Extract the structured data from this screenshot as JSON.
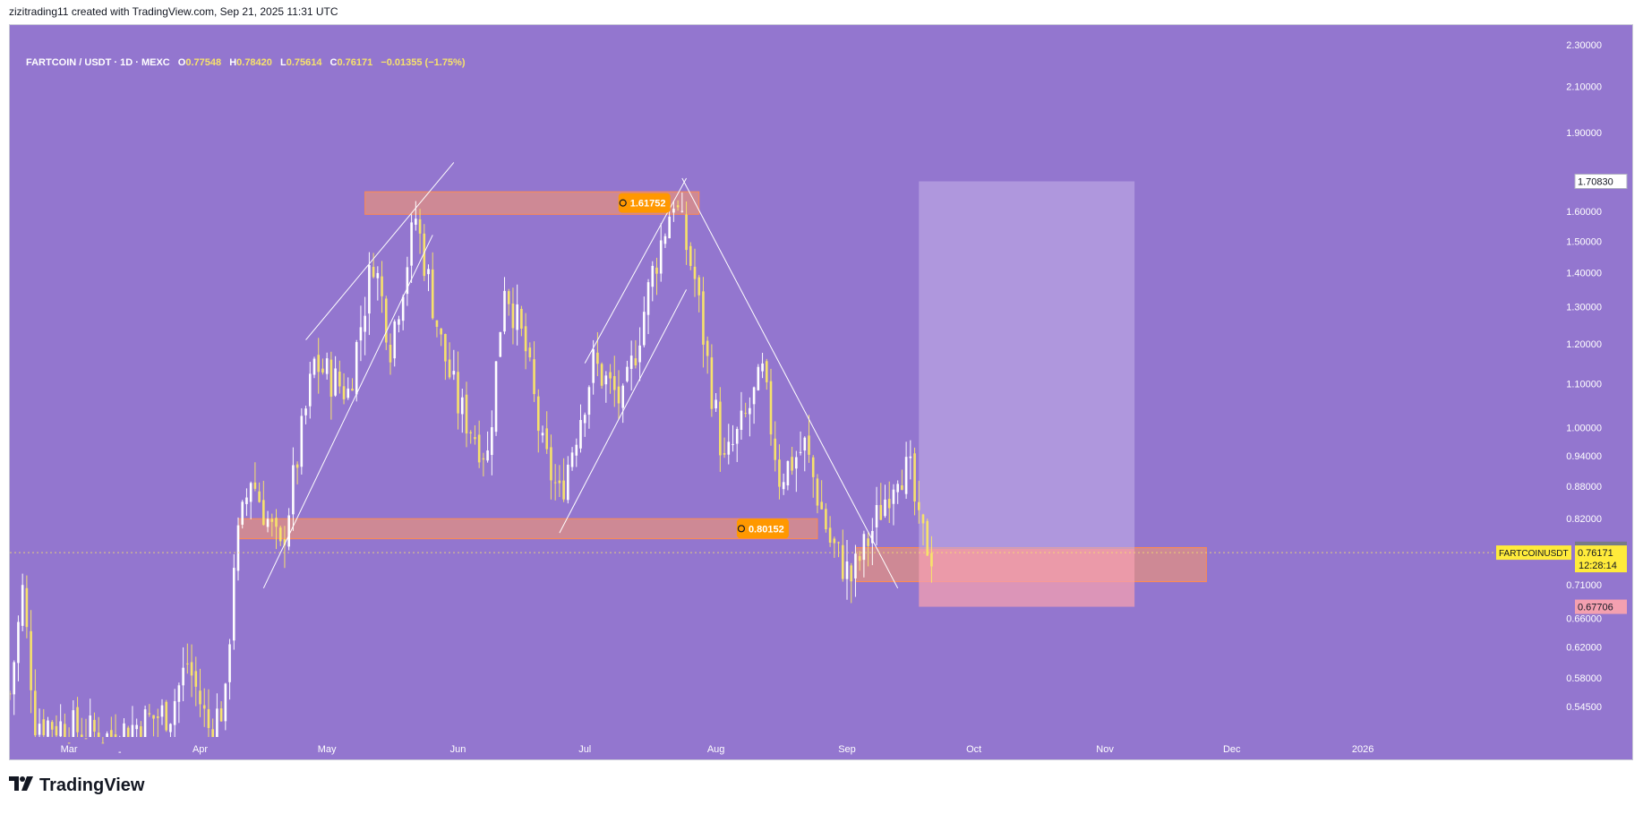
{
  "header": {
    "attribution": "zizitrading11 created with TradingView.com, Sep 21, 2025 11:31 UTC"
  },
  "legend": {
    "symbol": "FARTCOIN / USDT · 1D · MEXC",
    "o_label": "O",
    "o": "0.77548",
    "h_label": "H",
    "h": "0.78420",
    "l_label": "L",
    "l": "0.75614",
    "c_label": "C",
    "c": "0.76171",
    "change": "−0.01355 (−1.75%)"
  },
  "brand": {
    "name": "TradingView",
    "logo_icon": "tradingview-logo-icon"
  },
  "colors": {
    "background": "#9376cf",
    "candle_up": "#ffffff",
    "candle_down": "#f7e26b",
    "zone_fill": "#ff9966",
    "target_fill": "#c2aee6",
    "stop_fill": "#f4a0b0",
    "label_orange": "#ff9800",
    "price_tag": "#ffeb3b"
  },
  "chart_data": {
    "type": "candlestick",
    "title": "FARTCOIN / USDT · 1D · MEXC",
    "y_scale": "log",
    "ylim": [
      0.51,
      2.4
    ],
    "y_ticks": [
      "2.30000",
      "2.10000",
      "1.90000",
      "1.60000",
      "1.50000",
      "1.40000",
      "1.30000",
      "1.20000",
      "1.10000",
      "1.00000",
      "0.94000",
      "0.88000",
      "0.82000",
      "0.71000",
      "0.66000",
      "0.62000",
      "0.58000",
      "0.54500"
    ],
    "x_ticks": [
      "Mar",
      "Apr",
      "May",
      "Jun",
      "Jul",
      "Aug",
      "Sep",
      "Oct",
      "Nov",
      "Dec",
      "2026"
    ],
    "xlim": [
      "2025-02-15",
      "2026-02-10"
    ],
    "candles_range": [
      "2025-02-15",
      "2025-09-21"
    ],
    "candle_pivots": [
      {
        "date": "2025-02-15",
        "close": 0.56
      },
      {
        "date": "2025-02-18",
        "close": 0.7
      },
      {
        "date": "2025-02-21",
        "close": 0.53
      },
      {
        "date": "2025-03-10",
        "close": 0.51
      },
      {
        "date": "2025-03-25",
        "close": 0.54
      },
      {
        "date": "2025-03-29",
        "close": 0.6
      },
      {
        "date": "2025-04-03",
        "close": 0.52
      },
      {
        "date": "2025-04-07",
        "close": 0.55
      },
      {
        "date": "2025-04-09",
        "close": 0.75
      },
      {
        "date": "2025-04-13",
        "close": 0.9
      },
      {
        "date": "2025-04-20",
        "close": 0.76
      },
      {
        "date": "2025-04-28",
        "close": 1.15
      },
      {
        "date": "2025-05-06",
        "close": 1.08
      },
      {
        "date": "2025-05-12",
        "close": 1.45
      },
      {
        "date": "2025-05-16",
        "close": 1.2
      },
      {
        "date": "2025-05-22",
        "close": 1.58
      },
      {
        "date": "2025-05-28",
        "close": 1.2
      },
      {
        "date": "2025-06-01",
        "close": 1.05
      },
      {
        "date": "2025-06-08",
        "close": 0.94
      },
      {
        "date": "2025-06-12",
        "close": 1.38
      },
      {
        "date": "2025-06-17",
        "close": 1.18
      },
      {
        "date": "2025-06-21",
        "close": 0.95
      },
      {
        "date": "2025-06-25",
        "close": 0.86
      },
      {
        "date": "2025-07-03",
        "close": 1.15
      },
      {
        "date": "2025-07-10",
        "close": 1.05
      },
      {
        "date": "2025-07-17",
        "close": 1.4
      },
      {
        "date": "2025-07-22",
        "close": 1.65
      },
      {
        "date": "2025-07-27",
        "close": 1.38
      },
      {
        "date": "2025-07-30",
        "close": 1.15
      },
      {
        "date": "2025-08-03",
        "close": 0.92
      },
      {
        "date": "2025-08-08",
        "close": 1.02
      },
      {
        "date": "2025-08-12",
        "close": 1.12
      },
      {
        "date": "2025-08-16",
        "close": 0.9
      },
      {
        "date": "2025-08-22",
        "close": 0.96
      },
      {
        "date": "2025-08-28",
        "close": 0.78
      },
      {
        "date": "2025-09-02",
        "close": 0.72
      },
      {
        "date": "2025-09-07",
        "close": 0.8
      },
      {
        "date": "2025-09-13",
        "close": 0.92
      },
      {
        "date": "2025-09-16",
        "close": 0.9
      },
      {
        "date": "2025-09-18",
        "close": 0.8
      },
      {
        "date": "2025-09-21",
        "close": 0.76171
      }
    ],
    "zones": [
      {
        "from": "2025-05-10",
        "to": "2025-07-28",
        "low": 1.59,
        "high": 1.67,
        "label": "1.61752"
      },
      {
        "from": "2025-04-10",
        "to": "2025-08-25",
        "low": 0.785,
        "high": 0.82,
        "label": "0.80152"
      },
      {
        "from": "2025-09-03",
        "to": "2025-11-25",
        "low": 0.715,
        "high": 0.77,
        "label": ""
      }
    ],
    "trendlines": [
      {
        "x1": "2025-04-16",
        "y1": 0.705,
        "x2": "2025-05-26",
        "y2": 1.52
      },
      {
        "x1": "2025-04-26",
        "y1": 1.21,
        "x2": "2025-05-31",
        "y2": 1.78
      },
      {
        "x1": "2025-06-25",
        "y1": 0.795,
        "x2": "2025-07-25",
        "y2": 1.35
      },
      {
        "x1": "2025-07-01",
        "y1": 1.15,
        "x2": "2025-07-25",
        "y2": 1.72
      },
      {
        "x1": "2025-07-24",
        "y1": 1.72,
        "x2": "2025-09-13",
        "y2": 0.705
      }
    ],
    "position_box": {
      "from": "2025-09-18",
      "to": "2025-11-08",
      "top": 1.7083,
      "entry": 0.76807,
      "bottom": 0.67706
    },
    "price_labels": [
      {
        "value": 1.7083,
        "text": "1.70830",
        "style": "white"
      },
      {
        "value": 0.76807,
        "text": "0.76807",
        "style": "gray"
      },
      {
        "value": 0.76171,
        "text": "0.76171",
        "style": "yellow",
        "symbol": "FARTCOINUSDT",
        "countdown": "12:28:14"
      },
      {
        "value": 0.67706,
        "text": "0.67706",
        "style": "pink"
      }
    ],
    "last_price": 0.76171
  }
}
